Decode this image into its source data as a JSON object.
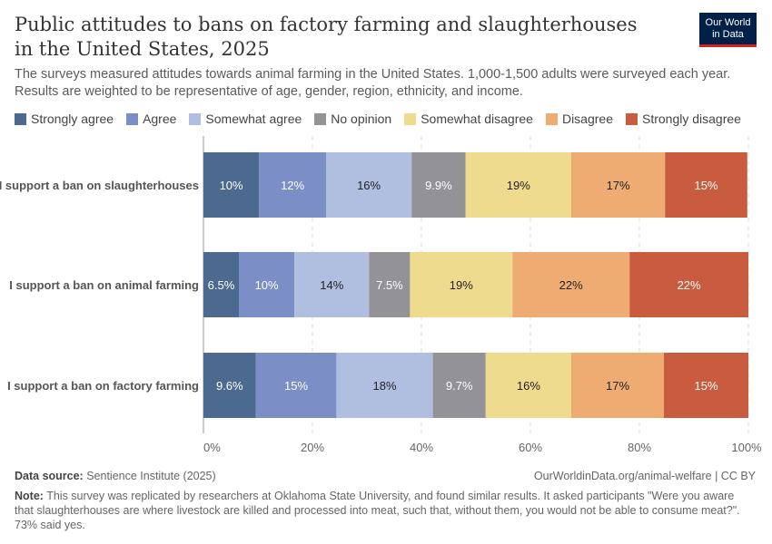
{
  "header": {
    "title": "Public attitudes to bans on factory farming and slaughterhouses in the United States, 2025",
    "subtitle": "The surveys measured attitudes towards animal farming in the United States. 1,000-1,500 adults were surveyed each year. Results are weighted to be representative of age, gender, region, ethnicity, and income.",
    "logo": "Our World in Data"
  },
  "footer": {
    "source_label": "Data source:",
    "source": "Sentience Institute (2025)",
    "url": "OurWorldinData.org/animal-welfare | CC BY",
    "note_label": "Note:",
    "note": "This survey was replicated by researchers at Oklahoma State University, and found similar results. It asked participants \"Were you aware that slaughterhouses are where livestock are killed and processed into meat, such that, without them, you would not be able to consume meat?\". 73% said yes."
  },
  "chart_data": {
    "type": "bar",
    "orientation": "horizontal",
    "stacked": true,
    "categories": [
      "I support a ban on slaughterhouses",
      "I support a ban on animal farming",
      "I support a ban on factory farming"
    ],
    "series": [
      {
        "name": "Strongly agree",
        "color": "#4c6a8f",
        "values": [
          10.2,
          6.5,
          9.6
        ],
        "labels": [
          "10%",
          "6.5%",
          "9.6%"
        ]
      },
      {
        "name": "Agree",
        "color": "#7b8ec5",
        "values": [
          12.3,
          10.2,
          14.8
        ],
        "labels": [
          "12%",
          "10%",
          "15%"
        ]
      },
      {
        "name": "Somewhat agree",
        "color": "#b0bfe0",
        "values": [
          15.7,
          13.7,
          17.7
        ],
        "labels": [
          "16%",
          "14%",
          "18%"
        ]
      },
      {
        "name": "No opinion",
        "color": "#939296",
        "values": [
          9.9,
          7.5,
          9.7
        ],
        "labels": [
          "9.9%",
          "7.5%",
          "9.7%"
        ]
      },
      {
        "name": "Somewhat disagree",
        "color": "#efdb8e",
        "values": [
          19.4,
          18.8,
          15.7
        ],
        "labels": [
          "19%",
          "19%",
          "16%"
        ]
      },
      {
        "name": "Disagree",
        "color": "#eeab72",
        "values": [
          17.2,
          21.5,
          17.0
        ],
        "labels": [
          "17%",
          "22%",
          "17%"
        ]
      },
      {
        "name": "Strongly disagree",
        "color": "#c95c3f",
        "values": [
          15.1,
          21.8,
          15.5
        ],
        "labels": [
          "15%",
          "22%",
          "15%"
        ]
      }
    ],
    "xlim": [
      0,
      100
    ],
    "xticks": [
      "0%",
      "20%",
      "40%",
      "60%",
      "80%",
      "100%"
    ],
    "grid": true,
    "legend": "top"
  }
}
